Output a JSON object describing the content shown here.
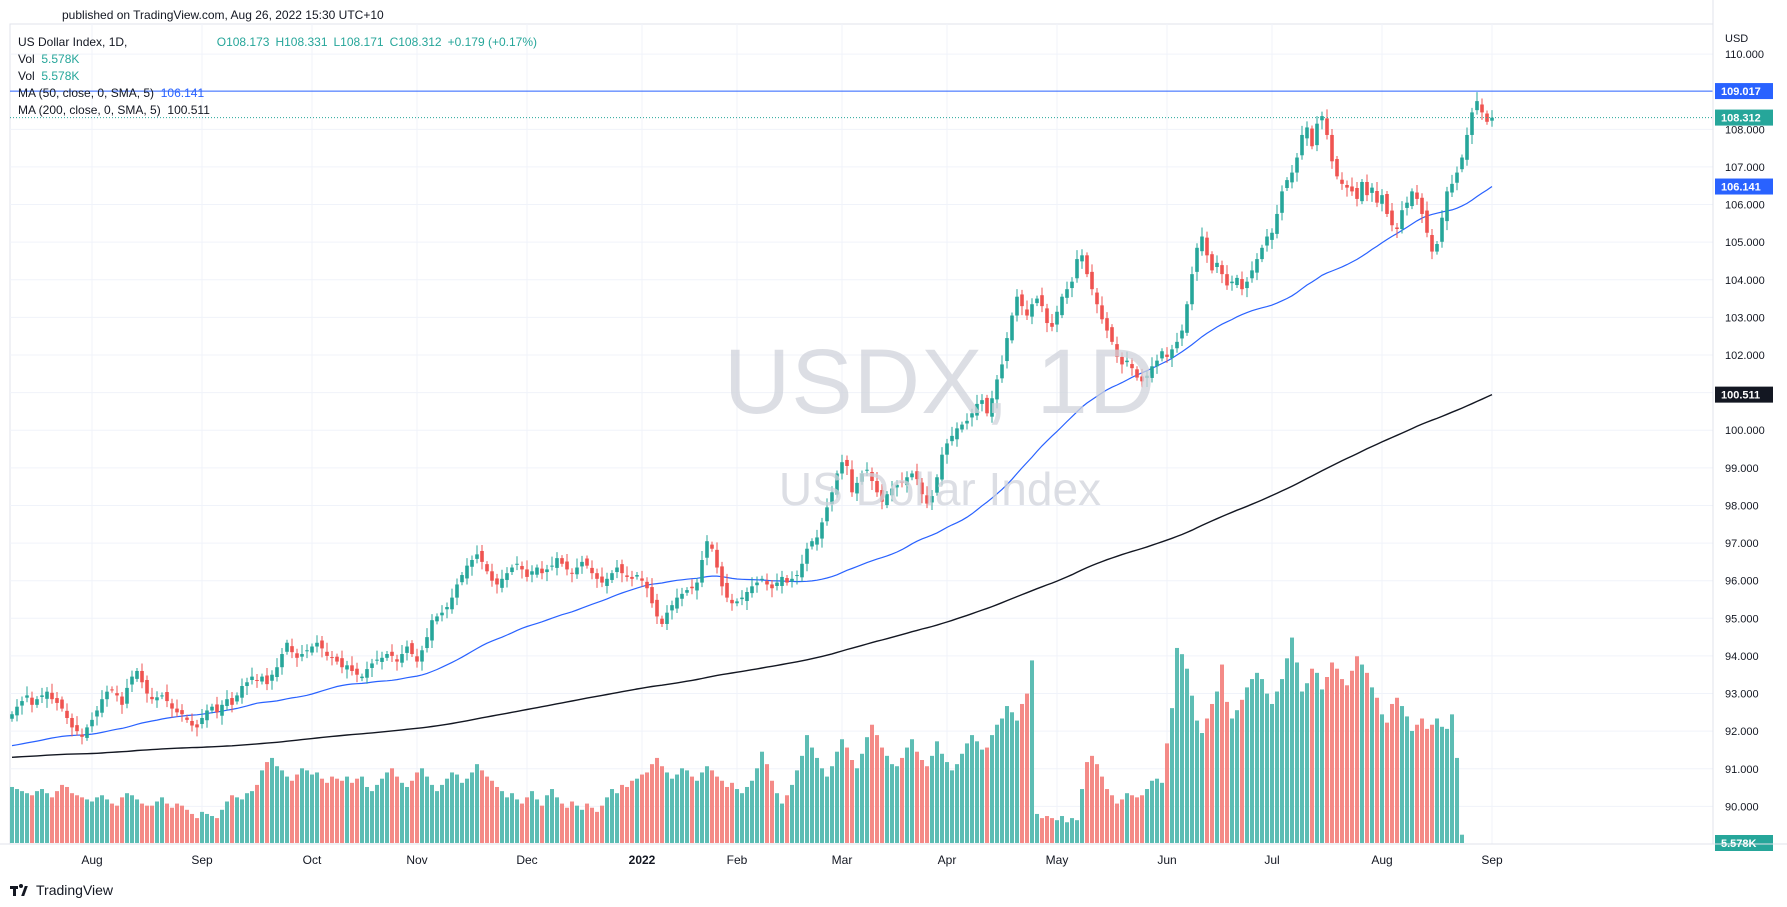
{
  "header": {
    "published": "published on TradingView.com, Aug 26, 2022 15:30 UTC+10"
  },
  "legend": {
    "symbol": "US Dollar Index, 1D,",
    "ohlc": {
      "o": "O108.173",
      "h": "H108.331",
      "l": "L108.171",
      "c": "C108.312",
      "chg": "+0.179 (+0.17%)"
    },
    "vol1_label": "Vol",
    "vol1_value": "5.578K",
    "vol2_label": "Vol",
    "vol2_value": "5.578K",
    "ma50_label": "MA (50, close, 0, SMA, 5)",
    "ma50_value": "106.141",
    "ma200_label": "MA (200, close, 0, SMA, 5)",
    "ma200_value": "100.511"
  },
  "watermark": {
    "ticker": "USDX, 1D",
    "name": "US Dollar Index"
  },
  "footer": {
    "brand": "TradingView"
  },
  "colors": {
    "up": "#26a69a",
    "down": "#ef5350",
    "volume_up": "#5dbdb4",
    "volume_down": "#f48a87",
    "ma50": "#2962ff",
    "ma200": "#131722",
    "hline": "#2962ff"
  },
  "chart_data": {
    "type": "candlestick",
    "currency": "USD",
    "x_labels": [
      "Aug",
      "Sep",
      "Oct",
      "Nov",
      "Dec",
      "2022",
      "Feb",
      "Mar",
      "Apr",
      "May",
      "Jun",
      "Jul",
      "Aug",
      "Sep"
    ],
    "x_label_index": [
      16,
      38,
      60,
      81,
      103,
      126,
      145,
      166,
      187,
      209,
      231,
      252,
      274,
      296
    ],
    "y_ticks": [
      90,
      91,
      92,
      93,
      94,
      95,
      96,
      97,
      98,
      99,
      100,
      101,
      102,
      103,
      104,
      105,
      106,
      107,
      108,
      110
    ],
    "y_tick_labels": [
      "90.000",
      "91.000",
      "92.000",
      "93.000",
      "94.000",
      "95.000",
      "96.000",
      "97.000",
      "98.000",
      "99.000",
      "100.000",
      "101.000",
      "102.000",
      "103.000",
      "104.000",
      "105.000",
      "106.000",
      "107.000",
      "108.000",
      "110.000"
    ],
    "price_labels": {
      "hline": "109.017",
      "last": "108.312",
      "ma50": "106.141",
      "ma200": "100.511",
      "volume": "5.578K"
    },
    "hline_value": 109.017,
    "last_value": 108.312,
    "closes": [
      92.45,
      92.65,
      92.8,
      92.95,
      92.7,
      92.85,
      92.95,
      93.05,
      92.85,
      92.75,
      92.6,
      92.35,
      92.1,
      92.0,
      91.85,
      92.1,
      92.3,
      92.55,
      92.85,
      93.05,
      93.1,
      92.95,
      92.7,
      93.15,
      93.45,
      93.6,
      93.3,
      93.0,
      92.85,
      92.9,
      92.95,
      92.8,
      92.6,
      92.5,
      92.45,
      92.3,
      92.15,
      92.1,
      92.35,
      92.55,
      92.65,
      92.5,
      92.7,
      92.85,
      92.7,
      92.95,
      93.2,
      93.3,
      93.45,
      93.35,
      93.45,
      93.25,
      93.5,
      93.7,
      94.05,
      94.35,
      94.1,
      93.95,
      94.05,
      94.15,
      94.25,
      94.35,
      94.2,
      94.0,
      93.95,
      93.85,
      93.7,
      93.75,
      93.6,
      93.5,
      93.45,
      93.65,
      93.8,
      93.9,
      93.95,
      94.05,
      94.0,
      93.85,
      94.05,
      94.25,
      94.05,
      93.85,
      94.15,
      94.5,
      94.95,
      95.05,
      95.15,
      95.3,
      95.55,
      95.9,
      96.15,
      96.4,
      96.55,
      96.7,
      96.5,
      96.25,
      96.0,
      95.9,
      96.05,
      96.2,
      96.35,
      96.45,
      96.3,
      96.1,
      96.25,
      96.35,
      96.2,
      96.3,
      96.4,
      96.6,
      96.45,
      96.3,
      96.2,
      96.35,
      96.5,
      96.4,
      96.2,
      96.05,
      95.95,
      96.05,
      96.2,
      96.35,
      96.2,
      96.1,
      96.05,
      96.15,
      96.0,
      95.8,
      95.4,
      95.05,
      94.85,
      95.15,
      95.35,
      95.55,
      95.65,
      95.75,
      95.8,
      95.95,
      96.55,
      97.05,
      96.85,
      96.35,
      95.85,
      95.55,
      95.4,
      95.45,
      95.55,
      95.7,
      95.85,
      95.95,
      96.05,
      95.9,
      95.8,
      95.95,
      96.1,
      95.95,
      96.05,
      96.15,
      96.45,
      96.85,
      97.05,
      97.15,
      97.55,
      97.95,
      98.35,
      98.85,
      99.15,
      99.05,
      98.35,
      98.6,
      98.85,
      98.95,
      98.65,
      98.35,
      98.1,
      98.3,
      98.45,
      98.55,
      98.6,
      98.75,
      98.85,
      98.7,
      98.3,
      98.05,
      98.25,
      98.75,
      99.35,
      99.65,
      99.85,
      100.05,
      100.15,
      100.25,
      100.45,
      100.7,
      100.8,
      100.45,
      100.85,
      101.35,
      101.75,
      102.45,
      103.05,
      103.55,
      103.3,
      103.05,
      103.35,
      103.5,
      103.3,
      102.85,
      102.75,
      103.15,
      103.55,
      103.75,
      103.95,
      104.55,
      104.65,
      104.15,
      103.75,
      103.35,
      102.95,
      102.65,
      102.35,
      101.95,
      101.75,
      101.85,
      101.65,
      101.4,
      101.3,
      101.45,
      101.7,
      101.85,
      102.1,
      101.95,
      102.15,
      102.35,
      102.65,
      103.35,
      104.15,
      104.85,
      105.15,
      104.65,
      104.25,
      104.45,
      104.15,
      103.85,
      103.95,
      104.05,
      103.75,
      103.95,
      104.25,
      104.55,
      104.85,
      105.15,
      105.25,
      105.75,
      106.35,
      106.65,
      106.85,
      107.25,
      107.85,
      108.05,
      107.55,
      108.15,
      108.35,
      107.85,
      107.15,
      106.75,
      106.55,
      106.45,
      106.35,
      106.15,
      106.6,
      106.25,
      106.45,
      106.05,
      106.25,
      105.75,
      105.45,
      105.35,
      105.85,
      106.05,
      106.35,
      106.15,
      105.75,
      105.25,
      104.75,
      104.95,
      105.65,
      106.35,
      106.55,
      106.85,
      107.25,
      107.85,
      108.45,
      108.75,
      108.45,
      108.2,
      108.31
    ],
    "volumes": [
      1.35,
      1.3,
      1.25,
      1.2,
      1.15,
      1.25,
      1.3,
      1.2,
      1.1,
      1.25,
      1.4,
      1.35,
      1.2,
      1.15,
      1.1,
      1.05,
      1.0,
      1.1,
      1.15,
      1.05,
      0.95,
      0.9,
      1.1,
      1.2,
      1.15,
      1.05,
      0.95,
      0.9,
      0.9,
      1.0,
      1.1,
      0.95,
      0.85,
      0.95,
      0.9,
      0.8,
      0.7,
      0.6,
      0.75,
      0.7,
      0.65,
      0.6,
      0.8,
      1.0,
      1.15,
      1.1,
      1.05,
      1.2,
      1.25,
      1.4,
      1.75,
      1.95,
      2.05,
      1.85,
      1.75,
      1.6,
      1.5,
      1.65,
      1.8,
      1.75,
      1.65,
      1.7,
      1.55,
      1.45,
      1.6,
      1.55,
      1.5,
      1.6,
      1.45,
      1.55,
      1.6,
      1.35,
      1.25,
      1.4,
      1.55,
      1.7,
      1.8,
      1.6,
      1.45,
      1.35,
      1.5,
      1.7,
      1.8,
      1.6,
      1.4,
      1.25,
      1.4,
      1.55,
      1.7,
      1.65,
      1.45,
      1.55,
      1.7,
      1.9,
      1.75,
      1.6,
      1.5,
      1.35,
      1.25,
      1.1,
      1.2,
      1.05,
      0.95,
      1.1,
      1.25,
      1.05,
      0.9,
      1.15,
      1.3,
      1.1,
      0.95,
      0.85,
      1.0,
      0.9,
      0.8,
      0.95,
      0.85,
      0.75,
      0.9,
      1.1,
      1.3,
      1.2,
      1.4,
      1.35,
      1.5,
      1.55,
      1.65,
      1.7,
      1.9,
      2.05,
      1.85,
      1.7,
      1.55,
      1.65,
      1.8,
      1.75,
      1.6,
      1.5,
      1.7,
      1.85,
      1.75,
      1.6,
      1.5,
      1.35,
      1.45,
      1.3,
      1.2,
      1.35,
      1.5,
      1.8,
      2.2,
      1.9,
      1.5,
      1.2,
      0.95,
      1.15,
      1.4,
      1.75,
      2.1,
      2.6,
      2.3,
      2.05,
      1.8,
      1.6,
      1.85,
      2.2,
      2.5,
      2.3,
      2.0,
      1.8,
      2.15,
      2.55,
      2.85,
      2.6,
      2.3,
      2.1,
      1.9,
      1.85,
      2.05,
      2.3,
      2.5,
      2.2,
      2.0,
      1.85,
      2.1,
      2.45,
      2.15,
      1.95,
      1.75,
      1.9,
      2.15,
      2.4,
      2.6,
      2.45,
      2.25,
      2.3,
      2.6,
      2.85,
      3.0,
      3.3,
      3.15,
      2.95,
      3.35,
      3.6,
      4.4,
      0.7,
      0.6,
      0.65,
      0.6,
      0.55,
      0.65,
      0.5,
      0.6,
      0.55,
      1.3,
      1.95,
      2.1,
      1.9,
      1.6,
      1.3,
      1.15,
      0.95,
      1.05,
      1.2,
      1.15,
      1.1,
      1.15,
      1.3,
      1.5,
      1.55,
      1.45,
      2.4,
      3.25,
      4.7,
      4.55,
      4.2,
      3.55,
      2.95,
      2.65,
      3.0,
      3.35,
      3.65,
      4.3,
      3.4,
      3.0,
      3.2,
      3.45,
      3.75,
      3.95,
      4.1,
      3.95,
      3.6,
      3.35,
      3.65,
      3.95,
      4.45,
      4.95,
      4.35,
      3.65,
      3.85,
      4.2,
      4.1,
      3.7,
      4.0,
      4.35,
      4.2,
      3.95,
      3.8,
      4.15,
      4.5,
      4.3,
      4.1,
      3.75,
      3.5,
      3.1,
      2.9,
      3.35,
      3.5,
      3.3,
      3.05,
      2.7,
      2.85,
      3.0,
      2.75,
      2.85,
      3.0,
      2.8,
      2.75,
      3.1,
      2.05,
      0.2
    ],
    "ma50": [],
    "ma200": []
  }
}
